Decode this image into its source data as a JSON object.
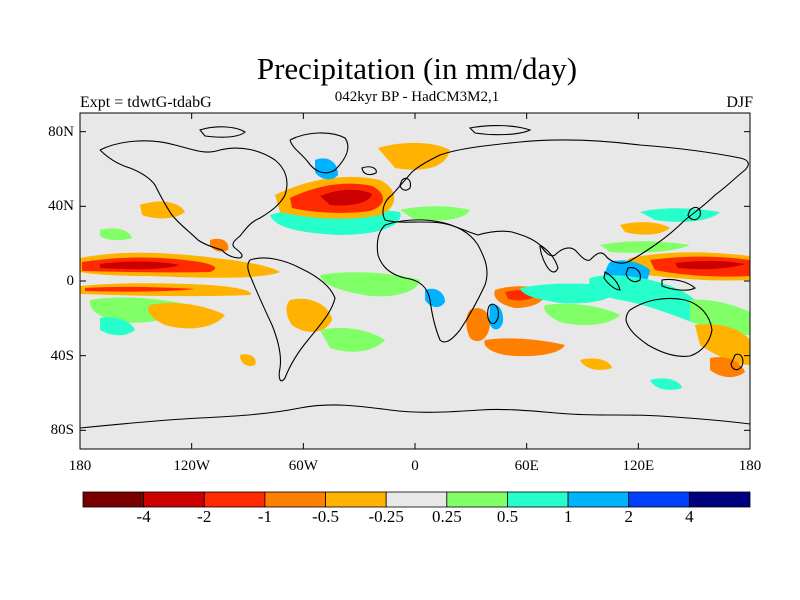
{
  "figure": {
    "title": "Precipitation (in mm/day)",
    "subtitle": "042kyr BP - HadCM3M2,1",
    "left_label": "Expt = tdwtG-tdabG",
    "right_label": "DJF"
  },
  "axes": {
    "lat_ticks": [
      "80N",
      "40N",
      "0",
      "40S",
      "80S"
    ],
    "lat_values": [
      80,
      40,
      0,
      -40,
      -80
    ],
    "lon_ticks": [
      "180",
      "120W",
      "60W",
      "0",
      "60E",
      "120E",
      "180"
    ],
    "lon_values": [
      -180,
      -120,
      -60,
      0,
      60,
      120,
      180
    ],
    "lat_range": [
      -90,
      90
    ],
    "lon_range": [
      -180,
      180
    ]
  },
  "colorbar": {
    "labels": [
      "-4",
      "-2",
      "-1",
      "-0.5",
      "-0.25",
      "0.25",
      "0.5",
      "1",
      "2",
      "4"
    ],
    "colors": [
      "#7a0000",
      "#cc0000",
      "#ff2a00",
      "#ff7f00",
      "#ffb300",
      "#e8e8e8",
      "#80ff66",
      "#26ffcc",
      "#00b3ff",
      "#0040ff",
      "#000080"
    ]
  },
  "colors": {
    "background": "#e8e8e8",
    "coast": "#000000"
  }
}
